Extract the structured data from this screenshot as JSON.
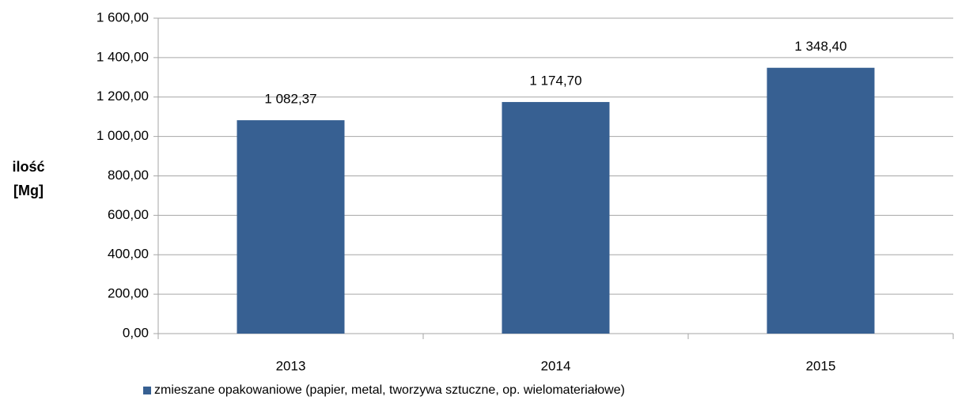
{
  "chart_data": {
    "type": "bar",
    "ylabel": "ilość [Mg]",
    "categories": [
      "2013",
      "2014",
      "2015"
    ],
    "series": [
      {
        "name": "zmieszane opakowaniowe (papier, metal, tworzywa sztuczne, op. wielomateriałowe)",
        "color": "#376092",
        "values": [
          1082.37,
          1174.7,
          1348.4
        ],
        "value_labels": [
          "1 082,37",
          "1 174,70",
          "1 348,40"
        ]
      }
    ],
    "ylim": [
      0,
      1600
    ],
    "yticks": [
      {
        "value": 0,
        "label": "0,00"
      },
      {
        "value": 200,
        "label": "200,00"
      },
      {
        "value": 400,
        "label": "400,00"
      },
      {
        "value": 600,
        "label": "600,00"
      },
      {
        "value": 800,
        "label": "800,00"
      },
      {
        "value": 1000,
        "label": "1 000,00"
      },
      {
        "value": 1200,
        "label": "1 200,00"
      },
      {
        "value": 1400,
        "label": "1 400,00"
      },
      {
        "value": 1600,
        "label": "1 600,00"
      }
    ],
    "grid": true,
    "legend": "bottom"
  }
}
